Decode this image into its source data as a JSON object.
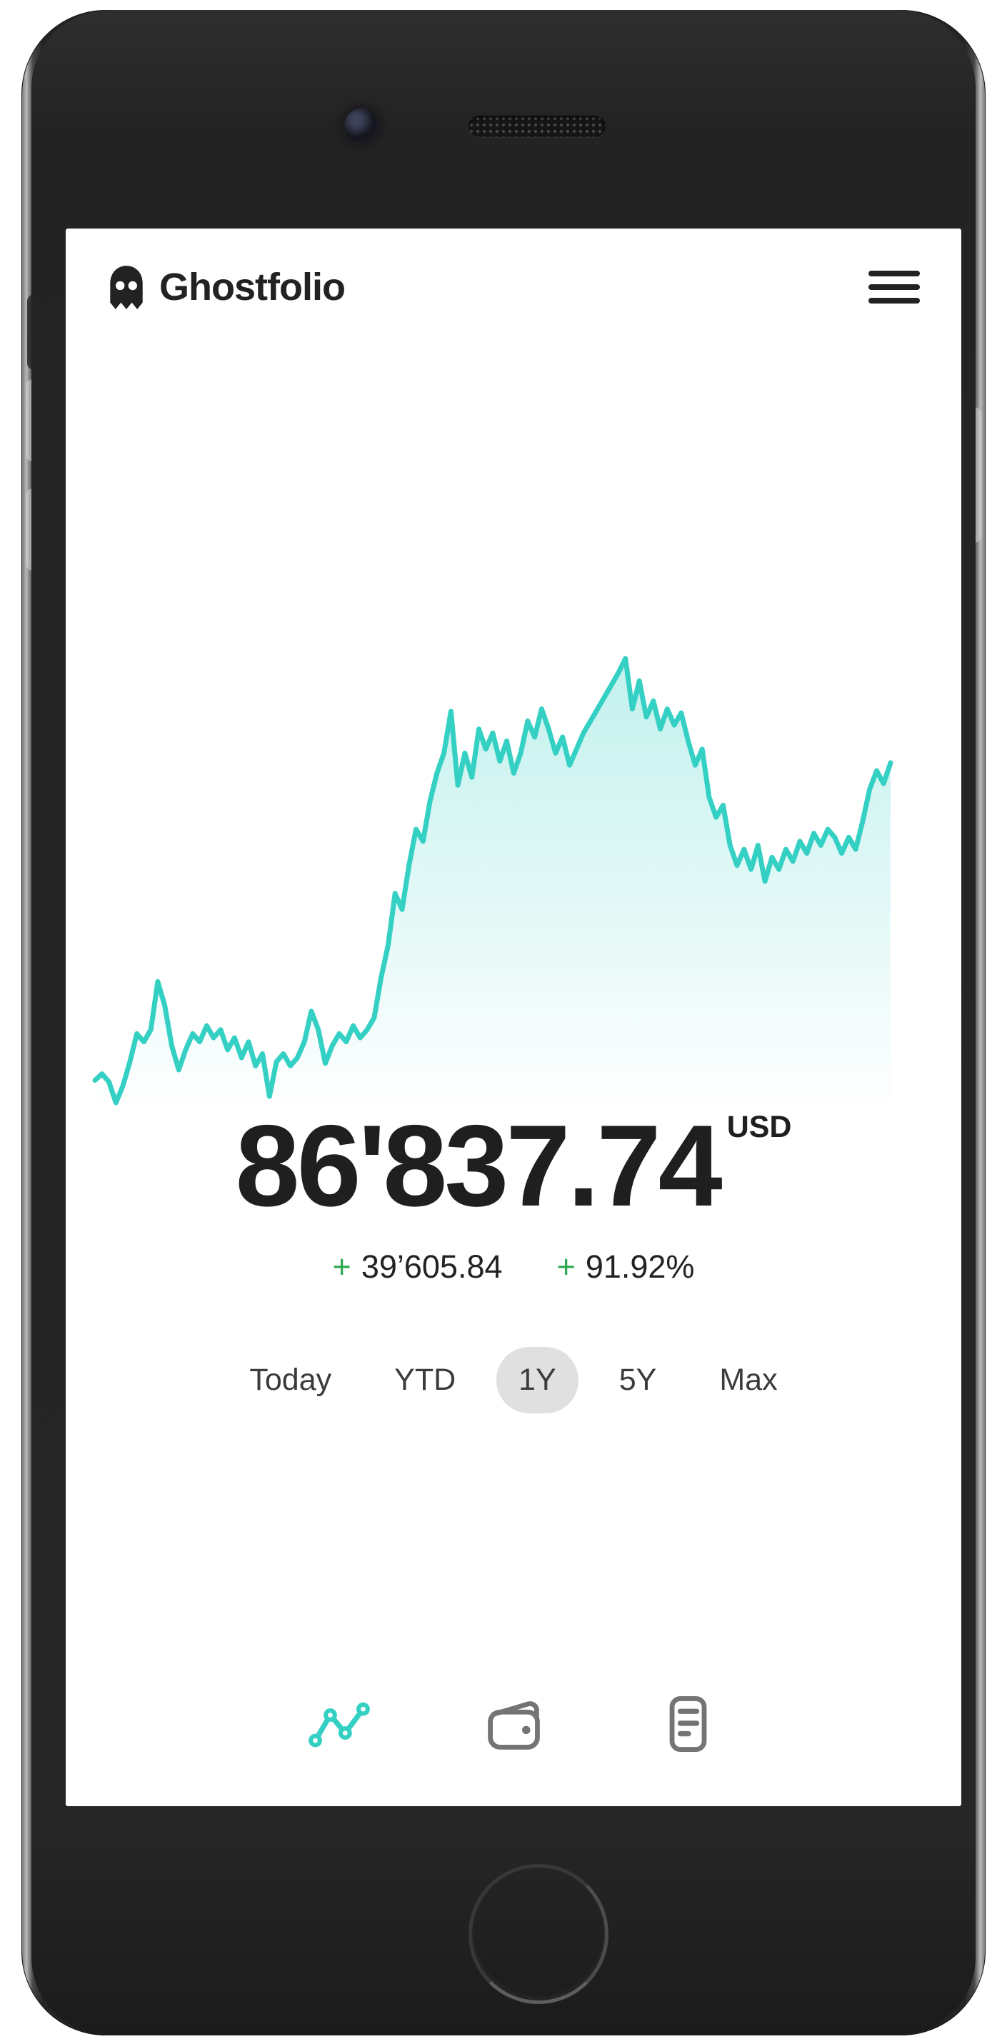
{
  "app": {
    "title": "Ghostfolio"
  },
  "header": {
    "logo_icon": "ghost-icon",
    "menu_icon": "hamburger-menu-icon"
  },
  "portfolio": {
    "value": "86'837.74",
    "currency": "USD",
    "change_sign": "+",
    "change_absolute": "39’605.84",
    "change_percent": "91.92%"
  },
  "range_selector": {
    "options": [
      {
        "label": "Today",
        "selected": false
      },
      {
        "label": "YTD",
        "selected": false
      },
      {
        "label": "1Y",
        "selected": true
      },
      {
        "label": "5Y",
        "selected": false
      },
      {
        "label": "Max",
        "selected": false
      }
    ]
  },
  "bottom_nav": [
    {
      "icon": "chart-line-icon",
      "active": true
    },
    {
      "icon": "wallet-icon",
      "active": false
    },
    {
      "icon": "report-lines-icon",
      "active": false
    }
  ],
  "colors": {
    "accent_teal": "#35d0c4",
    "positive_green": "#2fa94f",
    "text_primary": "#222222",
    "text_secondary": "#3b3b3b",
    "pill_background": "#e0e0e0",
    "nav_inactive_gray": "#747474",
    "bezel_dark": "#262626"
  },
  "chart_data": {
    "type": "area",
    "period_selected": "1Y",
    "grid": false,
    "legend": false,
    "axes_visible": false,
    "y_unit": "USD, thousands (estimated from sparkline; end value 86.84)",
    "series": [
      {
        "name": "Portfolio value",
        "values": [
          47.2,
          48.0,
          47.0,
          44.4,
          46.5,
          49.5,
          53.0,
          52.0,
          53.5,
          59.5,
          56.5,
          51.5,
          48.5,
          51.0,
          53.0,
          52.0,
          54.0,
          52.5,
          53.5,
          51.0,
          52.5,
          50.0,
          52.0,
          49.0,
          50.5,
          45.2,
          49.5,
          50.5,
          49.0,
          50.0,
          52.0,
          55.8,
          53.5,
          49.3,
          51.5,
          53.0,
          52.0,
          54.0,
          52.5,
          53.5,
          55.0,
          60.0,
          64.0,
          70.5,
          68.5,
          74.0,
          78.5,
          77.0,
          82.0,
          85.5,
          88.0,
          93.2,
          84.0,
          88.0,
          85.0,
          91.0,
          88.5,
          90.5,
          87.0,
          89.5,
          85.5,
          88.0,
          92.0,
          90.0,
          93.5,
          91.0,
          88.0,
          90.0,
          86.5,
          88.5,
          90.5,
          92.0,
          93.5,
          95.0,
          96.5,
          98.0,
          99.8,
          93.5,
          97.0,
          92.5,
          94.5,
          91.0,
          93.5,
          91.5,
          93.0,
          89.5,
          86.5,
          88.5,
          82.5,
          80.0,
          81.5,
          76.5,
          74.0,
          76.0,
          73.5,
          76.5,
          72.0,
          75.0,
          73.5,
          76.0,
          74.5,
          77.0,
          75.5,
          78.0,
          76.5,
          78.5,
          77.5,
          75.5,
          77.5,
          76.0,
          79.5,
          83.5,
          85.8,
          84.2,
          86.8
        ]
      }
    ]
  }
}
